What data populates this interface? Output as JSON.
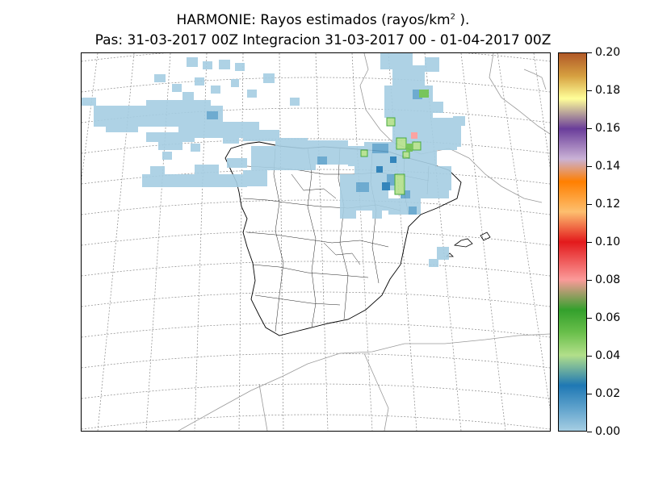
{
  "title": {
    "line1_prefix": "HARMONIE: Rayos estimados  (rayos/km",
    "line1_sup": "2",
    "line1_suffix": " ).",
    "line2": "Pas: 31-03-2017 00Z Integracion 31-03-2017 00 - 01-04-2017 00Z"
  },
  "colorbar": {
    "ticks": [
      "0.00",
      "0.02",
      "0.04",
      "0.06",
      "0.08",
      "0.10",
      "0.12",
      "0.14",
      "0.16",
      "0.18",
      "0.20"
    ],
    "colors": [
      "#a6cee3",
      "#1f78b4",
      "#b2df8a",
      "#33a02c",
      "#fb9a99",
      "#e31a1c",
      "#fdbf6f",
      "#ff7f00",
      "#cab2d6",
      "#6a3d9a",
      "#ffff99",
      "#b15928"
    ]
  },
  "map": {
    "region": "Iberian Peninsula",
    "field": "lightning density",
    "gridlines": true
  }
}
